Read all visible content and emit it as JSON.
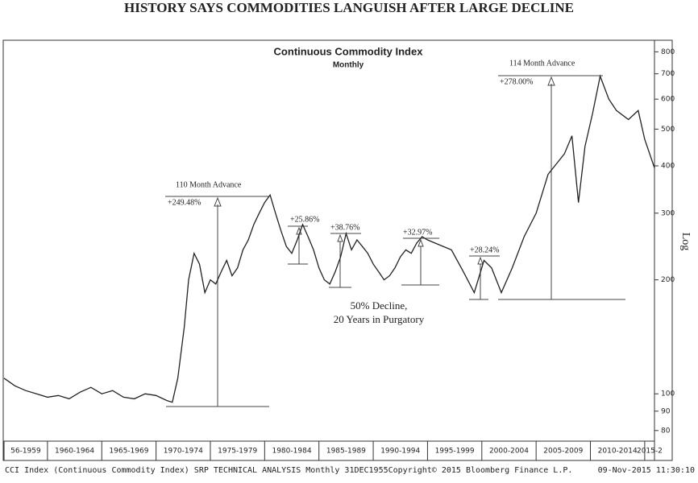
{
  "chart_data": {
    "type": "line",
    "title": "HISTORY SAYS COMMODITIES LANGUISH AFTER LARGE DECLINE",
    "chart_title": "Continuous Commodity Index",
    "subtitle": "Monthly",
    "x": [
      1956,
      1957,
      1958,
      1959,
      1960,
      1961,
      1962,
      1963,
      1964,
      1965,
      1966,
      1967,
      1968,
      1969,
      1970,
      1971,
      1971.5,
      1972,
      1972.6,
      1973,
      1973.5,
      1974,
      1974.5,
      1975,
      1975.5,
      1976,
      1976.5,
      1977,
      1977.5,
      1978,
      1978.5,
      1979,
      1979.5,
      1980,
      1980.5,
      1981,
      1981.5,
      1982,
      1982.5,
      1983,
      1983.5,
      1984,
      1984.5,
      1985,
      1985.5,
      1986,
      1986.5,
      1987,
      1987.5,
      1988,
      1988.5,
      1989,
      1989.5,
      1990,
      1990.5,
      1991,
      1991.5,
      1992,
      1992.5,
      1993,
      1993.5,
      1994,
      1994.5,
      1995,
      1995.7,
      1997.2,
      1998.3,
      1999.3,
      2000.2,
      2000.9,
      2001.8,
      2002.8,
      2003.9,
      2005,
      2006.1,
      2007.6,
      2008.3,
      2008.9,
      2009.5,
      2010.2,
      2010.9,
      2011.7,
      2012.4,
      2013.5,
      2014.4,
      2015,
      2015.9
    ],
    "values": [
      110,
      105,
      102,
      100,
      98,
      99,
      97,
      101,
      104,
      100,
      102,
      98,
      97,
      100,
      99,
      96,
      95,
      110,
      150,
      200,
      235,
      220,
      185,
      200,
      195,
      210,
      225,
      205,
      215,
      240,
      255,
      280,
      300,
      320,
      335,
      300,
      270,
      245,
      235,
      255,
      280,
      260,
      240,
      215,
      200,
      195,
      210,
      230,
      265,
      240,
      255,
      245,
      235,
      220,
      210,
      200,
      205,
      215,
      230,
      240,
      235,
      250,
      260,
      255,
      250,
      240,
      210,
      185,
      225,
      215,
      185,
      215,
      260,
      300,
      380,
      430,
      480,
      320,
      450,
      550,
      690,
      600,
      560,
      530,
      560,
      470,
      395
    ],
    "color": "#222222",
    "log_scale": true,
    "xlim": [
      1956,
      2015.9
    ],
    "xticks": [
      {
        "value": 1956,
        "label": "56-1959"
      },
      {
        "value": 1960,
        "label": "1960-1964"
      },
      {
        "value": 1965,
        "label": "1965-1969"
      },
      {
        "value": 1970,
        "label": "1970-1974"
      },
      {
        "value": 1975,
        "label": "1975-1979"
      },
      {
        "value": 1980,
        "label": "1980-1984"
      },
      {
        "value": 1985,
        "label": "1985-1989"
      },
      {
        "value": 1990,
        "label": "1990-1994"
      },
      {
        "value": 1995,
        "label": "1995-1999"
      },
      {
        "value": 2000,
        "label": "2000-2004"
      },
      {
        "value": 2005,
        "label": "2005-2009"
      },
      {
        "value": 2010,
        "label": "2010-2014"
      },
      {
        "value": 2015,
        "label": "2015-2"
      }
    ],
    "ylim": [
      75,
      850
    ],
    "yticks": [
      80,
      90,
      100,
      200,
      300,
      400,
      500,
      600,
      700,
      800
    ],
    "y_axis_label": "Log",
    "annotations": [
      "110 Month Advance",
      "+249.48%",
      "+25.86%",
      "+38.76%",
      "+32.97%",
      "+28.24%",
      "114 Month Advance",
      "+278.00%",
      "50% Decline,",
      "20 Years in Purgatory"
    ],
    "footer": [
      "CCI Index (Continuous Commodity Index) SRP TECHNICAL ANALYSIS  Monthly 31DEC1955",
      "Copyright© 2015 Bloomberg Finance L.P.",
      "09-Nov-2015 11:30:10"
    ]
  }
}
